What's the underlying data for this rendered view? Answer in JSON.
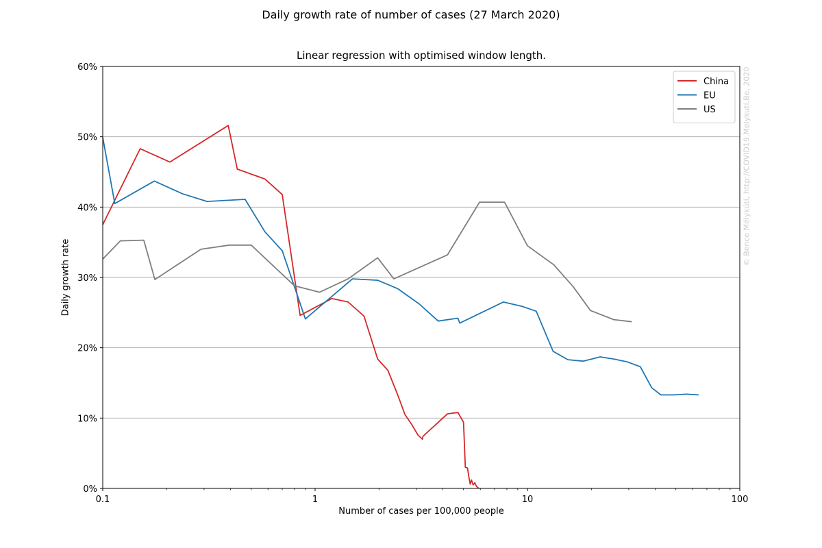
{
  "figure": {
    "suptitle": "Daily growth rate of number of cases (27 March 2020)",
    "watermark": "© Bence Mélykúti, http://COVID19.Melykuti.Be, 2020"
  },
  "chart_data": {
    "type": "line",
    "title": "Linear regression with optimised window length.",
    "xlabel": "Number of cases per 100,000 people",
    "ylabel": "Daily growth rate",
    "x_scale": "log",
    "xlim": [
      0.1,
      100
    ],
    "ylim": [
      0,
      0.6
    ],
    "x_ticks": [
      0.1,
      1,
      10,
      100
    ],
    "x_tick_labels": [
      "0.1",
      "1",
      "10",
      "100"
    ],
    "y_ticks": [
      0,
      0.1,
      0.2,
      0.3,
      0.4,
      0.5,
      0.6
    ],
    "y_tick_labels": [
      "0%",
      "10%",
      "20%",
      "30%",
      "40%",
      "50%",
      "60%"
    ],
    "grid": "horizontal",
    "legend_position": "top-right",
    "series": [
      {
        "name": "China",
        "color": "#d62728",
        "points": [
          [
            0.1,
            0.375
          ],
          [
            0.15,
            0.483
          ],
          [
            0.207,
            0.464
          ],
          [
            0.39,
            0.516
          ],
          [
            0.43,
            0.454
          ],
          [
            0.58,
            0.44
          ],
          [
            0.7,
            0.418
          ],
          [
            0.85,
            0.246
          ],
          [
            1.2,
            0.27
          ],
          [
            1.43,
            0.265
          ],
          [
            1.7,
            0.245
          ],
          [
            1.97,
            0.184
          ],
          [
            2.2,
            0.168
          ],
          [
            2.45,
            0.133
          ],
          [
            2.65,
            0.105
          ],
          [
            2.85,
            0.091
          ],
          [
            3.05,
            0.076
          ],
          [
            3.2,
            0.07
          ],
          [
            3.22,
            0.074
          ],
          [
            4.2,
            0.106
          ],
          [
            4.7,
            0.108
          ],
          [
            5.0,
            0.094
          ],
          [
            5.1,
            0.03
          ],
          [
            5.22,
            0.029
          ],
          [
            5.3,
            0.016
          ],
          [
            5.38,
            0.006
          ],
          [
            5.45,
            0.012
          ],
          [
            5.55,
            0.005
          ],
          [
            5.65,
            0.008
          ],
          [
            5.75,
            0.003
          ],
          [
            5.9,
            0.0
          ]
        ]
      },
      {
        "name": "EU",
        "color": "#1f77b4",
        "points": [
          [
            0.1,
            0.499
          ],
          [
            0.114,
            0.405
          ],
          [
            0.175,
            0.437
          ],
          [
            0.237,
            0.419
          ],
          [
            0.31,
            0.408
          ],
          [
            0.468,
            0.411
          ],
          [
            0.58,
            0.365
          ],
          [
            0.7,
            0.338
          ],
          [
            0.9,
            0.241
          ],
          [
            1.5,
            0.298
          ],
          [
            1.97,
            0.296
          ],
          [
            2.45,
            0.284
          ],
          [
            3.1,
            0.262
          ],
          [
            3.8,
            0.238
          ],
          [
            4.7,
            0.242
          ],
          [
            4.8,
            0.235
          ],
          [
            7.7,
            0.265
          ],
          [
            9.4,
            0.259
          ],
          [
            11.0,
            0.252
          ],
          [
            13.2,
            0.195
          ],
          [
            15.5,
            0.183
          ],
          [
            18.3,
            0.181
          ],
          [
            22.0,
            0.187
          ],
          [
            25.5,
            0.184
          ],
          [
            29.5,
            0.18
          ],
          [
            34.0,
            0.173
          ],
          [
            38.5,
            0.143
          ],
          [
            42.5,
            0.133
          ],
          [
            49.0,
            0.133
          ],
          [
            56.0,
            0.134
          ],
          [
            64.0,
            0.133
          ]
        ]
      },
      {
        "name": "US",
        "color": "#7f7f7f",
        "points": [
          [
            0.1,
            0.326
          ],
          [
            0.121,
            0.352
          ],
          [
            0.156,
            0.353
          ],
          [
            0.176,
            0.297
          ],
          [
            0.29,
            0.34
          ],
          [
            0.395,
            0.346
          ],
          [
            0.5,
            0.346
          ],
          [
            0.8,
            0.288
          ],
          [
            1.05,
            0.279
          ],
          [
            1.43,
            0.298
          ],
          [
            1.97,
            0.328
          ],
          [
            2.35,
            0.298
          ],
          [
            4.2,
            0.332
          ],
          [
            5.95,
            0.407
          ],
          [
            7.8,
            0.407
          ],
          [
            10.0,
            0.345
          ],
          [
            13.3,
            0.318
          ],
          [
            16.4,
            0.287
          ],
          [
            19.8,
            0.253
          ],
          [
            25.5,
            0.24
          ],
          [
            31.0,
            0.237
          ]
        ]
      }
    ]
  }
}
